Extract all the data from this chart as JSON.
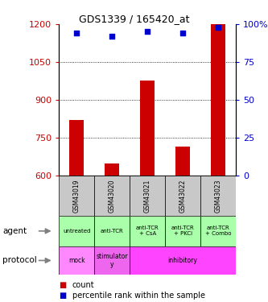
{
  "title": "GDS1339 / 165420_at",
  "samples": [
    "GSM43019",
    "GSM43020",
    "GSM43021",
    "GSM43022",
    "GSM43023"
  ],
  "count_values": [
    820,
    645,
    975,
    715,
    1200
  ],
  "percentile_values": [
    94,
    92,
    95,
    94,
    98
  ],
  "ylim_left": [
    600,
    1200
  ],
  "ylim_right": [
    0,
    100
  ],
  "yticks_left": [
    600,
    750,
    900,
    1050,
    1200
  ],
  "yticks_right": [
    0,
    25,
    50,
    75,
    100
  ],
  "bar_color": "#cc0000",
  "scatter_color": "#0000cc",
  "agent_labels": [
    "untreated",
    "anti-TCR",
    "anti-TCR\n+ CsA",
    "anti-TCR\n+ PKCi",
    "anti-TCR\n+ Combo"
  ],
  "protocol_data": [
    {
      "label": "mock",
      "span": 1,
      "color": "#ff88ff"
    },
    {
      "label": "stimulator\ny",
      "span": 1,
      "color": "#ee66ee"
    },
    {
      "label": "inhibitory",
      "span": 3,
      "color": "#ff44ff"
    }
  ],
  "sample_bg": "#c8c8c8",
  "agent_bg": "#aaffaa",
  "legend_count_color": "#cc0000",
  "legend_pct_color": "#0000cc"
}
